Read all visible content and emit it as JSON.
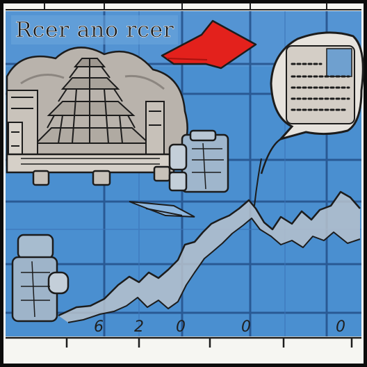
{
  "title": "Rcer ano rcer",
  "x_tick_labels": [
    "6",
    "2",
    "0",
    "0",
    "0"
  ],
  "palette": {
    "frame": "#0c0c0c",
    "sky": "#4a8fd0",
    "sky_light": "#6ba6dc",
    "grid": "#24508a",
    "arrow": "#e3211c",
    "cloud": "#b9b3ac",
    "ink": "#1c1c1c",
    "paper": "#f6f6f2"
  }
}
